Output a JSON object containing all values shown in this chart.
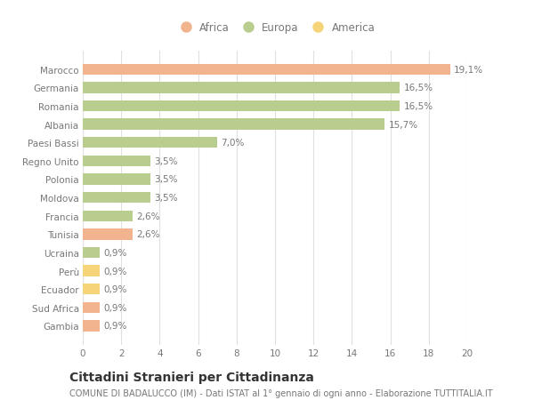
{
  "countries": [
    "Marocco",
    "Germania",
    "Romania",
    "Albania",
    "Paesi Bassi",
    "Regno Unito",
    "Polonia",
    "Moldova",
    "Francia",
    "Tunisia",
    "Ucraina",
    "Perù",
    "Ecuador",
    "Sud Africa",
    "Gambia"
  ],
  "values": [
    19.1,
    16.5,
    16.5,
    15.7,
    7.0,
    3.5,
    3.5,
    3.5,
    2.6,
    2.6,
    0.9,
    0.9,
    0.9,
    0.9,
    0.9
  ],
  "labels": [
    "19,1%",
    "16,5%",
    "16,5%",
    "15,7%",
    "7,0%",
    "3,5%",
    "3,5%",
    "3,5%",
    "2,6%",
    "2,6%",
    "0,9%",
    "0,9%",
    "0,9%",
    "0,9%",
    "0,9%"
  ],
  "colors": [
    "#f2b48e",
    "#b8cd8e",
    "#b8cd8e",
    "#b8cd8e",
    "#b8cd8e",
    "#b8cd8e",
    "#b8cd8e",
    "#b8cd8e",
    "#b8cd8e",
    "#f2b48e",
    "#b8cd8e",
    "#f5d47a",
    "#f5d47a",
    "#f2b48e",
    "#f2b48e"
  ],
  "legend_labels": [
    "Africa",
    "Europa",
    "America"
  ],
  "legend_colors": [
    "#f2b48e",
    "#b8cd8e",
    "#f5d47a"
  ],
  "title": "Cittadini Stranieri per Cittadinanza",
  "subtitle": "COMUNE DI BADALUCCO (IM) - Dati ISTAT al 1° gennaio di ogni anno - Elaborazione TUTTITALIA.IT",
  "xlim": [
    0,
    20
  ],
  "xticks": [
    0,
    2,
    4,
    6,
    8,
    10,
    12,
    14,
    16,
    18,
    20
  ],
  "background_color": "#ffffff",
  "grid_color": "#e0e0e0",
  "bar_height": 0.6,
  "label_fontsize": 7.5,
  "title_fontsize": 10,
  "subtitle_fontsize": 7,
  "tick_fontsize": 7.5,
  "legend_fontsize": 8.5,
  "text_color": "#777777"
}
